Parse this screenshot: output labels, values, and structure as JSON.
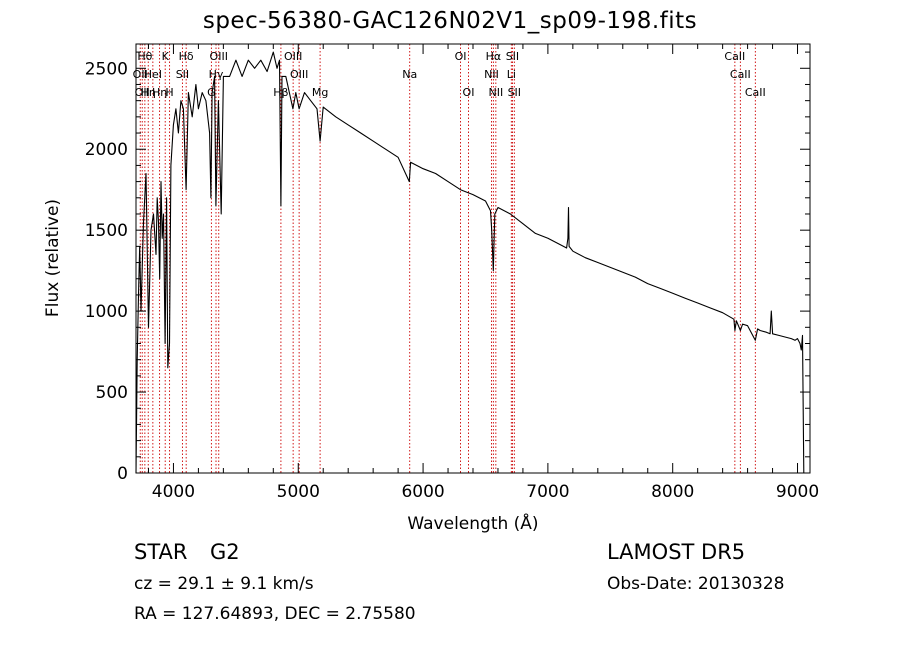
{
  "title": "spec-56380-GAC126N02V1_sp09-198.fits",
  "footer": {
    "class_label": "STAR",
    "subclass": "G2",
    "survey": "LAMOST  DR5",
    "cz": "cz = 29.1 ± 9.1 km/s",
    "obs_date": "Obs-Date: 20130328",
    "coords": "RA = 127.64893, DEC =   2.75580"
  },
  "colors": {
    "spectrum": "#000000",
    "lines": "#cc0000",
    "frame": "#000000"
  },
  "chart_data": {
    "type": "line",
    "title": "spec-56380-GAC126N02V1_sp09-198.fits",
    "xlabel": "Wavelength (Å)",
    "ylabel": "Flux (relative)",
    "xlim": [
      3700,
      9100
    ],
    "ylim": [
      0,
      2650
    ],
    "xticks": [
      4000,
      5000,
      6000,
      7000,
      8000,
      9000
    ],
    "yticks": [
      0,
      500,
      1000,
      1500,
      2000,
      2500
    ],
    "grid": false,
    "series": [
      {
        "x": [
          3700,
          3710,
          3720,
          3730,
          3740,
          3760,
          3780,
          3800,
          3820,
          3840,
          3860,
          3870,
          3880,
          3890,
          3900,
          3910,
          3920,
          3933,
          3945,
          3955,
          3968,
          3980,
          4000,
          4020,
          4040,
          4060,
          4080,
          4101,
          4120,
          4150,
          4180,
          4200,
          4230,
          4260,
          4290,
          4300,
          4310,
          4330,
          4340,
          4360,
          4383,
          4400,
          4450,
          4500,
          4550,
          4600,
          4650,
          4700,
          4750,
          4800,
          4830,
          4850,
          4861,
          4870,
          4900,
          4957,
          4980,
          5007,
          5050,
          5100,
          5150,
          5175,
          5200,
          5300,
          5400,
          5500,
          5600,
          5700,
          5800,
          5890,
          5900,
          6000,
          6100,
          6200,
          6300,
          6400,
          6500,
          6540,
          6550,
          6563,
          6575,
          6600,
          6700,
          6800,
          6900,
          7000,
          7100,
          7150,
          7160,
          7165,
          7170,
          7200,
          7300,
          7400,
          7500,
          7600,
          7700,
          7800,
          7900,
          8000,
          8100,
          8200,
          8300,
          8400,
          8490,
          8498,
          8510,
          8542,
          8560,
          8600,
          8662,
          8680,
          8700,
          8750,
          8780,
          8790,
          8800,
          8850,
          8900,
          8950,
          8980,
          9000,
          9020,
          9030,
          9040,
          9050
        ],
        "y": [
          0,
          700,
          1100,
          1400,
          1000,
          1550,
          1850,
          900,
          1500,
          1600,
          1350,
          1700,
          1550,
          1200,
          1800,
          1450,
          1600,
          800,
          1700,
          650,
          800,
          1900,
          2150,
          2250,
          2100,
          2300,
          2250,
          1750,
          2350,
          2200,
          2400,
          2250,
          2350,
          2300,
          2100,
          1700,
          2350,
          2450,
          1650,
          2300,
          1600,
          2450,
          2450,
          2550,
          2450,
          2550,
          2500,
          2550,
          2480,
          2600,
          2500,
          2550,
          1650,
          2450,
          2450,
          2250,
          2350,
          2250,
          2350,
          2300,
          2250,
          2050,
          2260,
          2200,
          2150,
          2100,
          2050,
          2000,
          1950,
          1800,
          1920,
          1880,
          1850,
          1800,
          1750,
          1720,
          1680,
          1620,
          1500,
          1250,
          1600,
          1640,
          1600,
          1540,
          1480,
          1450,
          1410,
          1390,
          1450,
          1640,
          1400,
          1370,
          1330,
          1300,
          1270,
          1240,
          1210,
          1170,
          1140,
          1110,
          1080,
          1050,
          1020,
          990,
          950,
          880,
          940,
          880,
          920,
          910,
          820,
          890,
          880,
          870,
          860,
          1000,
          860,
          850,
          840,
          830,
          820,
          830,
          800,
          760,
          850,
          0
        ]
      }
    ],
    "line_ids": [
      {
        "wl": 3734,
        "label": "OII",
        "row": 1
      },
      {
        "wl": 3750,
        "label": "OII",
        "row": 2
      },
      {
        "wl": 3771,
        "label": "Hθ",
        "row": 0
      },
      {
        "wl": 3798,
        "label": "Hη",
        "row": 2
      },
      {
        "wl": 3835,
        "label": "HeI",
        "row": 1
      },
      {
        "wl": 3889,
        "label": "Hη",
        "row": 2
      },
      {
        "wl": 3934,
        "label": "K",
        "row": 0
      },
      {
        "wl": 3969,
        "label": "H",
        "row": 2
      },
      {
        "wl": 4072,
        "label": "SII",
        "row": 1
      },
      {
        "wl": 4102,
        "label": "Hδ",
        "row": 0
      },
      {
        "wl": 4304,
        "label": "G",
        "row": 2
      },
      {
        "wl": 4341,
        "label": "Hγ",
        "row": 1
      },
      {
        "wl": 4363,
        "label": "OIII",
        "row": 0
      },
      {
        "wl": 4861,
        "label": "Hβ",
        "row": 2
      },
      {
        "wl": 4959,
        "label": "OIII",
        "row": 0
      },
      {
        "wl": 5007,
        "label": "OIII",
        "row": 1
      },
      {
        "wl": 5175,
        "label": "Mg",
        "row": 2
      },
      {
        "wl": 5893,
        "label": "Na",
        "row": 1
      },
      {
        "wl": 6300,
        "label": "OI",
        "row": 0
      },
      {
        "wl": 6364,
        "label": "OI",
        "row": 2
      },
      {
        "wl": 6548,
        "label": "NII",
        "row": 1
      },
      {
        "wl": 6563,
        "label": "Hα",
        "row": 0
      },
      {
        "wl": 6583,
        "label": "NII",
        "row": 2
      },
      {
        "wl": 6707,
        "label": "Li",
        "row": 1
      },
      {
        "wl": 6716,
        "label": "SII",
        "row": 0
      },
      {
        "wl": 6731,
        "label": "SII",
        "row": 2
      },
      {
        "wl": 8498,
        "label": "CaII",
        "row": 0
      },
      {
        "wl": 8542,
        "label": "CaII",
        "row": 1
      },
      {
        "wl": 8662,
        "label": "CaII",
        "row": 2
      }
    ]
  }
}
